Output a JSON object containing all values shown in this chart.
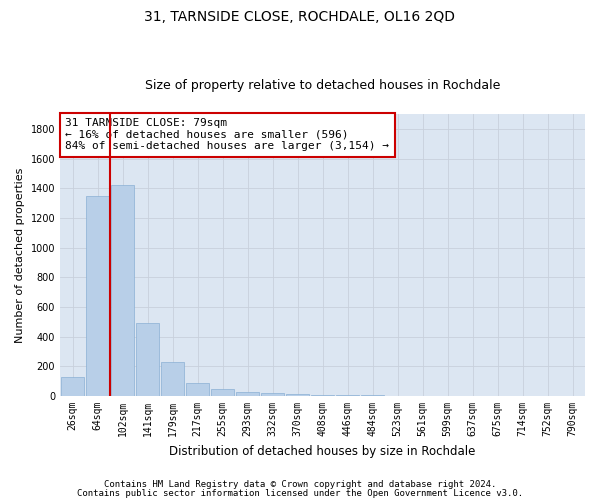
{
  "title": "31, TARNSIDE CLOSE, ROCHDALE, OL16 2QD",
  "subtitle": "Size of property relative to detached houses in Rochdale",
  "xlabel": "Distribution of detached houses by size in Rochdale",
  "ylabel": "Number of detached properties",
  "categories": [
    "26sqm",
    "64sqm",
    "102sqm",
    "141sqm",
    "179sqm",
    "217sqm",
    "255sqm",
    "293sqm",
    "332sqm",
    "370sqm",
    "408sqm",
    "446sqm",
    "484sqm",
    "523sqm",
    "561sqm",
    "599sqm",
    "637sqm",
    "675sqm",
    "714sqm",
    "752sqm",
    "790sqm"
  ],
  "values": [
    130,
    1350,
    1420,
    490,
    230,
    85,
    45,
    28,
    20,
    12,
    8,
    5,
    5,
    0,
    0,
    0,
    0,
    0,
    0,
    0,
    0
  ],
  "bar_color": "#b8cfe8",
  "bar_edgecolor": "#8aafd4",
  "vline_x": 1.5,
  "vline_color": "#cc0000",
  "annotation_text": "31 TARNSIDE CLOSE: 79sqm\n← 16% of detached houses are smaller (596)\n84% of semi-detached houses are larger (3,154) →",
  "annotation_box_color": "#ffffff",
  "annotation_box_edgecolor": "#cc0000",
  "ylim": [
    0,
    1900
  ],
  "yticks": [
    0,
    200,
    400,
    600,
    800,
    1000,
    1200,
    1400,
    1600,
    1800
  ],
  "grid_color": "#c8d0dc",
  "bg_color": "#dce6f2",
  "footer1": "Contains HM Land Registry data © Crown copyright and database right 2024.",
  "footer2": "Contains public sector information licensed under the Open Government Licence v3.0.",
  "title_fontsize": 10,
  "subtitle_fontsize": 9,
  "xlabel_fontsize": 8.5,
  "ylabel_fontsize": 8,
  "tick_fontsize": 7,
  "annotation_fontsize": 8,
  "footer_fontsize": 6.5
}
